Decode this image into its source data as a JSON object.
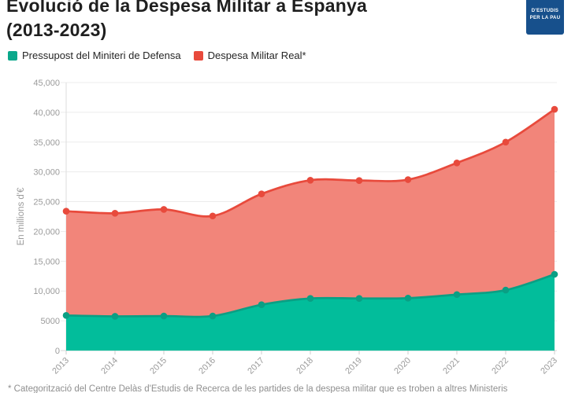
{
  "header": {
    "title_line1": "Evolució de la Despesa Militar a Espanya",
    "title_line2": "(2013-2023)",
    "logo": {
      "bg_color": "#17508c",
      "lines": [
        "D'ESTUDIS",
        "PER LA PAU"
      ]
    }
  },
  "legend": [
    {
      "label": "Pressupost del Miniteri de Defensa",
      "color": "#0aa88b"
    },
    {
      "label": "Despesa Militar Real*",
      "color": "#e84a3c"
    }
  ],
  "chart_data": {
    "type": "area",
    "title": "Evolució de la Despesa Militar a Espanya (2013-2023)",
    "x": [
      "2013",
      "2014",
      "2015",
      "2016",
      "2017",
      "2018",
      "2019",
      "2020",
      "2021",
      "2022",
      "2023"
    ],
    "series": [
      {
        "name": "Despesa Militar Real*",
        "color_line": "#e84a3c",
        "color_fill": "#f2857a",
        "values": [
          23400,
          23050,
          23700,
          22600,
          26300,
          28600,
          28550,
          28700,
          31500,
          35000,
          40500
        ]
      },
      {
        "name": "Pressupost del Miniteri de Defensa",
        "color_line": "#0a9f84",
        "color_fill": "#02bd9b",
        "values": [
          5900,
          5750,
          5800,
          5800,
          7700,
          8750,
          8750,
          8800,
          9400,
          10150,
          12800
        ]
      }
    ],
    "ylabel": "En millions d'€",
    "xlabel": "",
    "ylim": [
      0,
      45000
    ],
    "ytick_values": [
      0,
      5000,
      10000,
      15000,
      20000,
      25000,
      30000,
      35000,
      40000,
      45000
    ],
    "ytick_labels": [
      "0",
      "5000",
      "10,000",
      "15,000",
      "20,000",
      "25,000",
      "30,000",
      "35,000",
      "40,000",
      "45,000"
    ],
    "grid": true,
    "legend_position": "top-left",
    "colors": {
      "gridline": "#ececec",
      "baseline": "#d6d6d6",
      "axis_text": "#9b9b9b"
    }
  },
  "footnote": "* Categorització del Centre Delàs d'Estudis de Recerca de les partides de la despesa militar que es troben a altres Ministeris"
}
